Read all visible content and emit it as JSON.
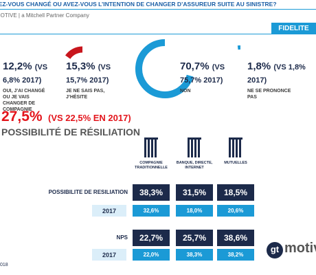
{
  "header": {
    "title": "VEZ-VOUS CHANGÉ OU AVEZ-VOUS L’INTENTION DE CHANGER D’ASSUREUR SUITE AU SINISTRE?",
    "subtitle": "MOTIVE | a Mitchell Partner Company",
    "tab": "FIDELITE"
  },
  "stats": [
    {
      "value": 12.2,
      "value_label": "12,2%",
      "comparison": "(VS 6,8% 2017)",
      "description": "OUI, J’AI CHANGÉ OU JE VAIS CHANGER DE COMPAGNIE",
      "color": "#e3141b"
    },
    {
      "value": 15.3,
      "value_label": "15,3%",
      "comparison": "(VS 15,7% 2017)",
      "description": "JE NE SAIS PAS, J’HÉSITE",
      "color": "#c8161d"
    },
    {
      "value": 70.7,
      "value_label": "70,7%",
      "comparison": "(VS 75,7% 2017)",
      "description": "NON",
      "color": "#1b9ad6"
    },
    {
      "value": 1.8,
      "value_label": "1,8%",
      "comparison": "(VS 1,8% 2017)",
      "description": "NE SE PRONONCE PAS",
      "color": "#1b9ad6"
    }
  ],
  "highlight": {
    "value": "27,5%",
    "comparison": "(VS 22,5% EN 2017)",
    "label": "POSSIBILITÉ DE RÉSILIATION"
  },
  "table": {
    "columns": [
      "COMPAGNIE TRADITIONNELLE",
      "BANQUE, DIRECTE, INTERNET",
      "MUTUELLES"
    ],
    "rows": [
      {
        "label": "POSSIBILITE DE RESILIATION",
        "cells": [
          "38,3%",
          "31,5%",
          "18,5%"
        ],
        "kind": "main"
      },
      {
        "label": "2017",
        "cells": [
          "32,6%",
          "18,0%",
          "20,6%"
        ],
        "kind": "prev"
      },
      {
        "label": "NPS",
        "cells": [
          "22,7%",
          "25,7%",
          "38,6%"
        ],
        "kind": "main"
      },
      {
        "label": "2017",
        "cells": [
          "22,0%",
          "38,3%",
          "38,2%"
        ],
        "kind": "prev"
      }
    ]
  },
  "footer": {
    "page": "018",
    "logo_mark": "gt",
    "logo_text": "motiv"
  }
}
